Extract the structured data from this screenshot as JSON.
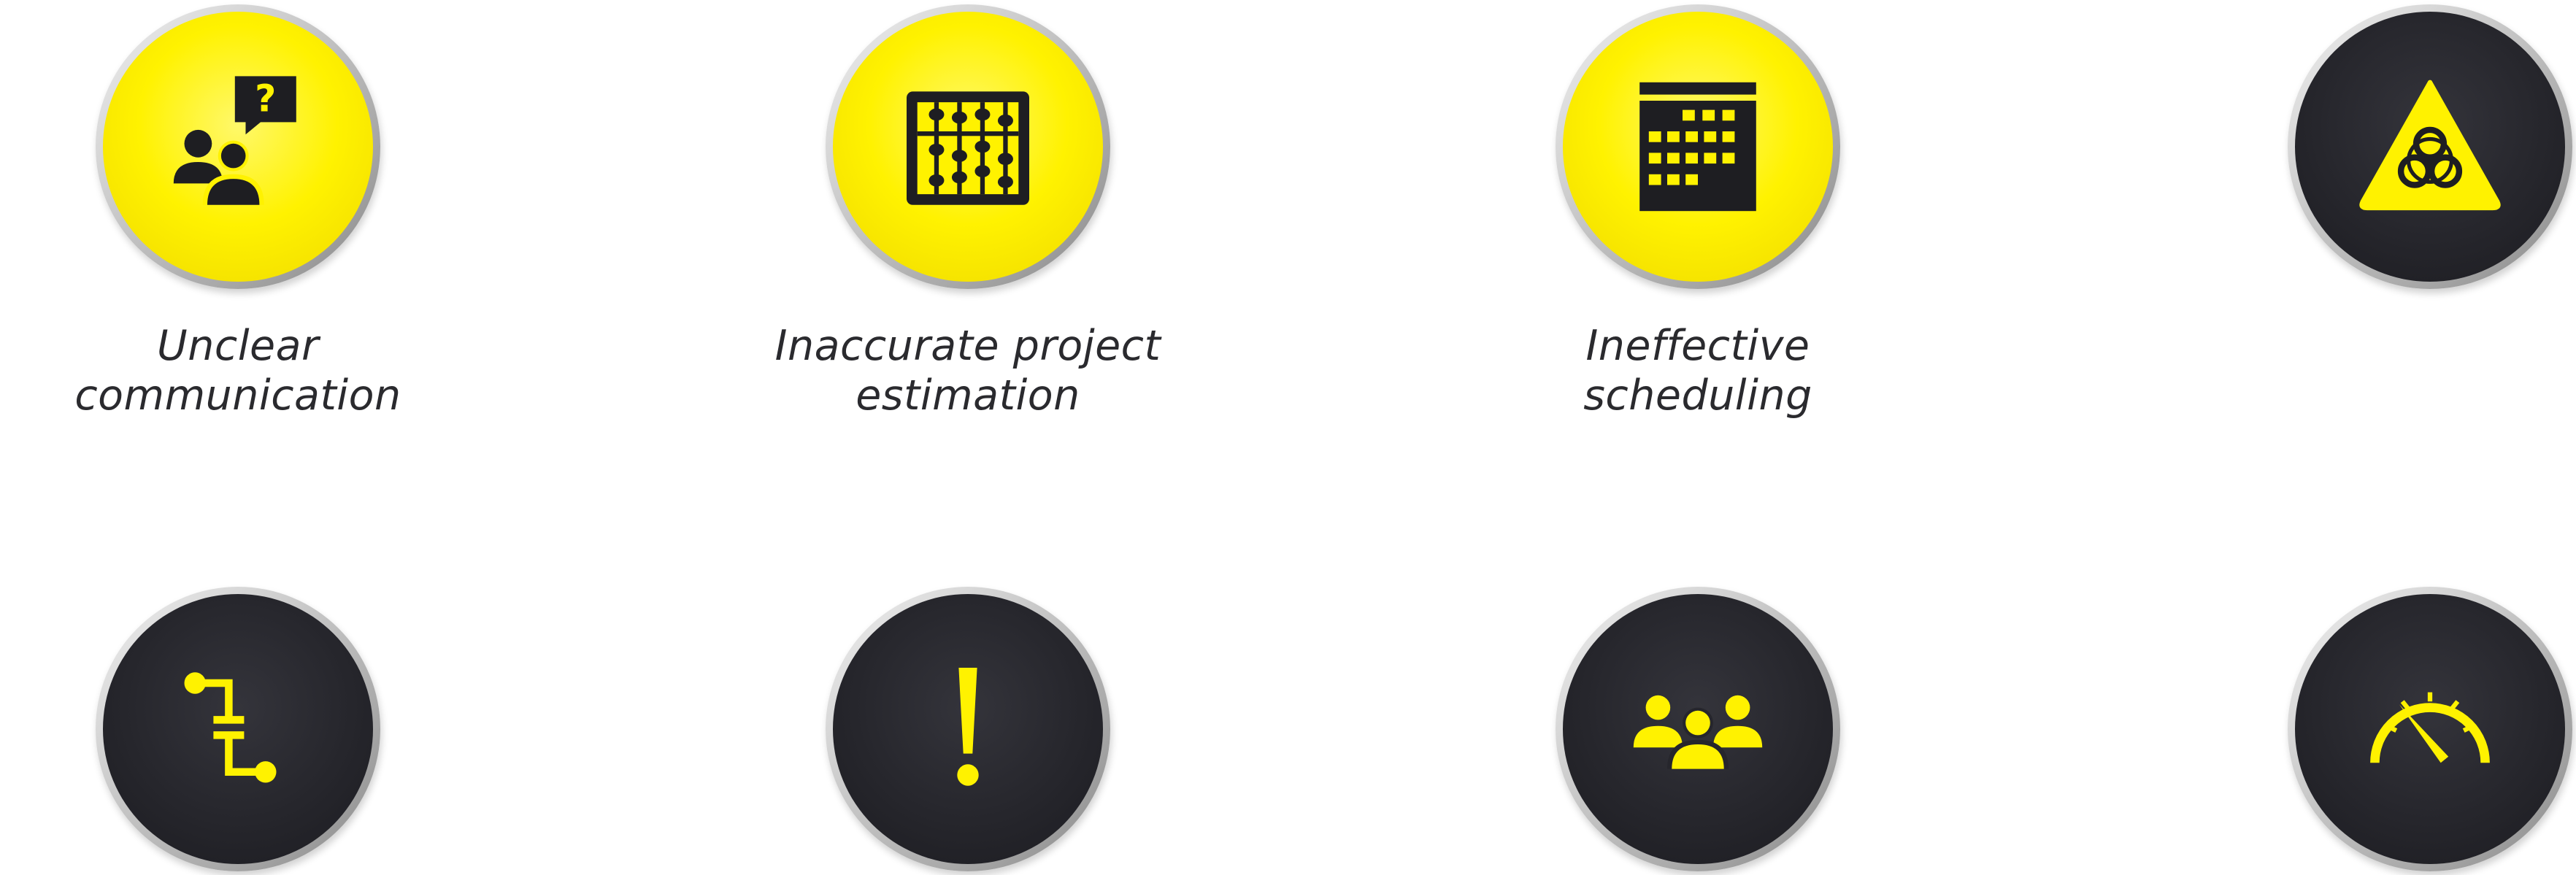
{
  "colors": {
    "accent_yellow": "#FFF200",
    "dark": "#26262C",
    "icon_dark": "#1E1E22",
    "text": "#2A2A2E"
  },
  "items": [
    {
      "icon": "question-chat-users-icon",
      "style": "yellow",
      "label_lines": [
        "Unclear",
        "communication"
      ]
    },
    {
      "icon": "abacus-icon",
      "style": "yellow",
      "label_lines": [
        "Inaccurate project",
        "estimation"
      ]
    },
    {
      "icon": "calendar-icon",
      "style": "yellow",
      "label_lines": [
        "Ineffective scheduling"
      ]
    },
    {
      "icon": "biohazard-warning-icon",
      "style": "dark",
      "label_lines": []
    },
    {
      "icon": "process-connector-icon",
      "style": "dark",
      "label_lines": []
    },
    {
      "icon": "exclamation-icon",
      "style": "dark",
      "label_lines": []
    },
    {
      "icon": "team-group-icon",
      "style": "dark",
      "label_lines": []
    },
    {
      "icon": "speedometer-icon",
      "style": "dark",
      "label_lines": []
    }
  ]
}
